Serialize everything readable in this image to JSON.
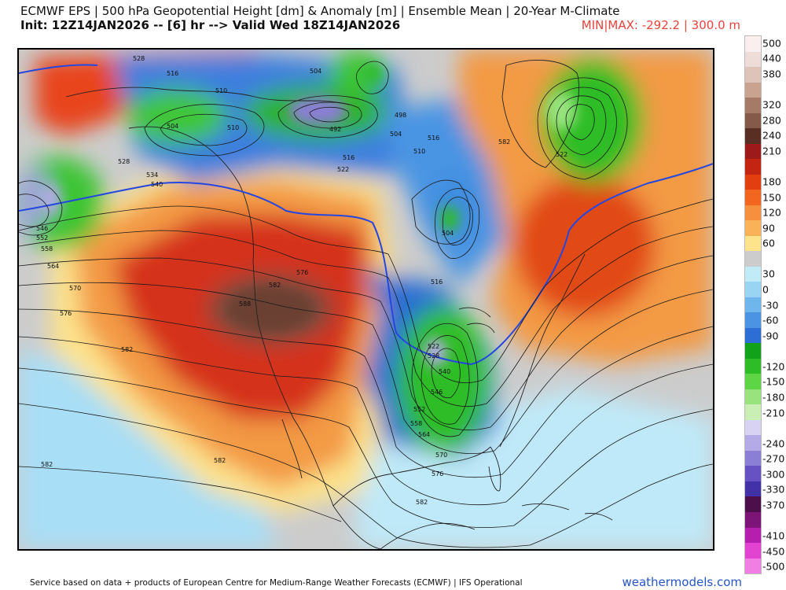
{
  "header": {
    "line1": "ECMWF EPS | 500 hPa Geopotential Height [dm] & Anomaly [m] | Ensemble Mean | 20-Year M-Climate",
    "line2": "Init: 12Z14JAN2026 -- [6] hr --> Valid Wed 18Z14JAN2026",
    "minmax": "MIN|MAX: -292.2 | 300.0 m"
  },
  "legend": {
    "colors": [
      "#fbeeee",
      "#eddcd8",
      "#ddc3b8",
      "#c9a390",
      "#a57b68",
      "#855a48",
      "#5a2f23",
      "#9e1919",
      "#c42513",
      "#e23e10",
      "#f2661f",
      "#f7903e",
      "#fab258",
      "#fde38c",
      "#cccccc",
      "#c1ecf7",
      "#99d5f3",
      "#6eb6ec",
      "#4a94e3",
      "#2c6ed3",
      "#11a21a",
      "#2ebd26",
      "#5ed545",
      "#98e37e",
      "#c9efb4",
      "#d9d3f3",
      "#b3aae6",
      "#8b7ed5",
      "#6652c3",
      "#4331a8",
      "#4c0f4a",
      "#7d1478",
      "#b61fad",
      "#e243d1",
      "#f17ee3"
    ],
    "labels": [
      "500",
      "440",
      "380",
      "320",
      "280",
      "240",
      "210",
      "180",
      "150",
      "120",
      "90",
      "60",
      "30",
      "0",
      "-30",
      "-60",
      "-90",
      "-120",
      "-150",
      "-180",
      "-210",
      "-240",
      "-270",
      "-300",
      "-330",
      "-370",
      "-410",
      "-450",
      "-500"
    ]
  },
  "map": {
    "contour_labels": [
      "528",
      "516",
      "504",
      "510",
      "492",
      "498",
      "504",
      "510",
      "516",
      "522",
      "504",
      "510",
      "516",
      "528",
      "534",
      "540",
      "546",
      "552",
      "558",
      "564",
      "570",
      "576",
      "582",
      "588",
      "582",
      "576",
      "504",
      "516",
      "522",
      "528",
      "540",
      "546",
      "552",
      "558",
      "564",
      "570",
      "576",
      "582",
      "582",
      "582",
      "582",
      "522"
    ]
  },
  "footer": {
    "attribution": "Service based on data + products of European Centre for Medium-Range Weather Forecasts (ECMWF) | IFS Operational",
    "brand": "weathermodels.com"
  }
}
